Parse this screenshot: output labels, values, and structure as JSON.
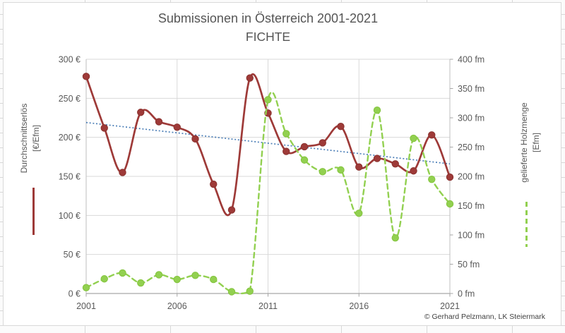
{
  "page": {
    "footer_credit": "© Gerhard Pelzmann, LK Steiermark"
  },
  "chart_data": {
    "type": "line",
    "title": "Submissionen in Österreich 2001-2021",
    "subtitle": "FICHTE",
    "x": [
      2001,
      2002,
      2003,
      2004,
      2005,
      2006,
      2007,
      2008,
      2009,
      2010,
      2011,
      2012,
      2013,
      2014,
      2015,
      2016,
      2017,
      2018,
      2019,
      2020,
      2021
    ],
    "x_range": [
      2001,
      2021
    ],
    "x_axis": {
      "tick_values": [
        2001,
        2006,
        2011,
        2016,
        2021
      ],
      "tick_labels": [
        "2001",
        "2006",
        "2011",
        "2016",
        "2021"
      ],
      "gridline_values": [
        2006,
        2011,
        2016
      ]
    },
    "left_axis": {
      "title_line1": "Durchschnittserlös",
      "title_line2": "[€/Efm]",
      "min": 0,
      "max": 300,
      "tick_values": [
        300,
        250,
        200,
        150,
        100,
        50,
        0
      ],
      "tick_labels": [
        "300 €",
        "250 €",
        "200 €",
        "150 €",
        "100 €",
        "50 €",
        "0 €"
      ]
    },
    "right_axis": {
      "title_line1": "gelieferte Holzmenge",
      "title_line2": "[Efm]",
      "min": 0,
      "max": 400,
      "tick_values": [
        400,
        350,
        300,
        250,
        200,
        150,
        100,
        50,
        0
      ],
      "tick_labels": [
        "400 fm",
        "350 fm",
        "300 fm",
        "250 fm",
        "200 fm",
        "150 fm",
        "100 fm",
        "50 fm",
        "0 fm"
      ]
    },
    "series": [
      {
        "name": "Durchschnittserlös [€/Efm]",
        "axis": "left",
        "color": "#9e3a38",
        "marker_edge": "#8a322f",
        "line_style": "solid",
        "values": [
          278,
          212,
          155,
          232,
          220,
          213,
          198,
          140,
          107,
          276,
          231,
          182,
          188,
          193,
          214,
          162,
          173,
          166,
          157,
          203,
          149
        ]
      },
      {
        "name": "gelieferte Holzmenge [Efm]",
        "axis": "right",
        "color": "#92d050",
        "marker_edge": "#83c43d",
        "line_style": "dashed",
        "values": [
          10,
          25,
          35,
          18,
          32,
          24,
          31,
          24,
          3,
          4,
          331,
          273,
          228,
          208,
          211,
          137,
          313,
          95,
          265,
          195,
          153
        ]
      }
    ],
    "trendline": {
      "for_series": "Durchschnittserlös [€/Efm]",
      "axis": "left",
      "start_value": 219,
      "end_value": 166,
      "color": "#4e80b8",
      "line_style": "dotted"
    },
    "grid": true,
    "legend_position": "axis-titles",
    "colors": {
      "gridline": "#d9d9d9",
      "axis_line": "#a6a6a6",
      "plot_border": "#bfbfbf",
      "label_text": "#595959",
      "title_text": "#555555"
    }
  }
}
